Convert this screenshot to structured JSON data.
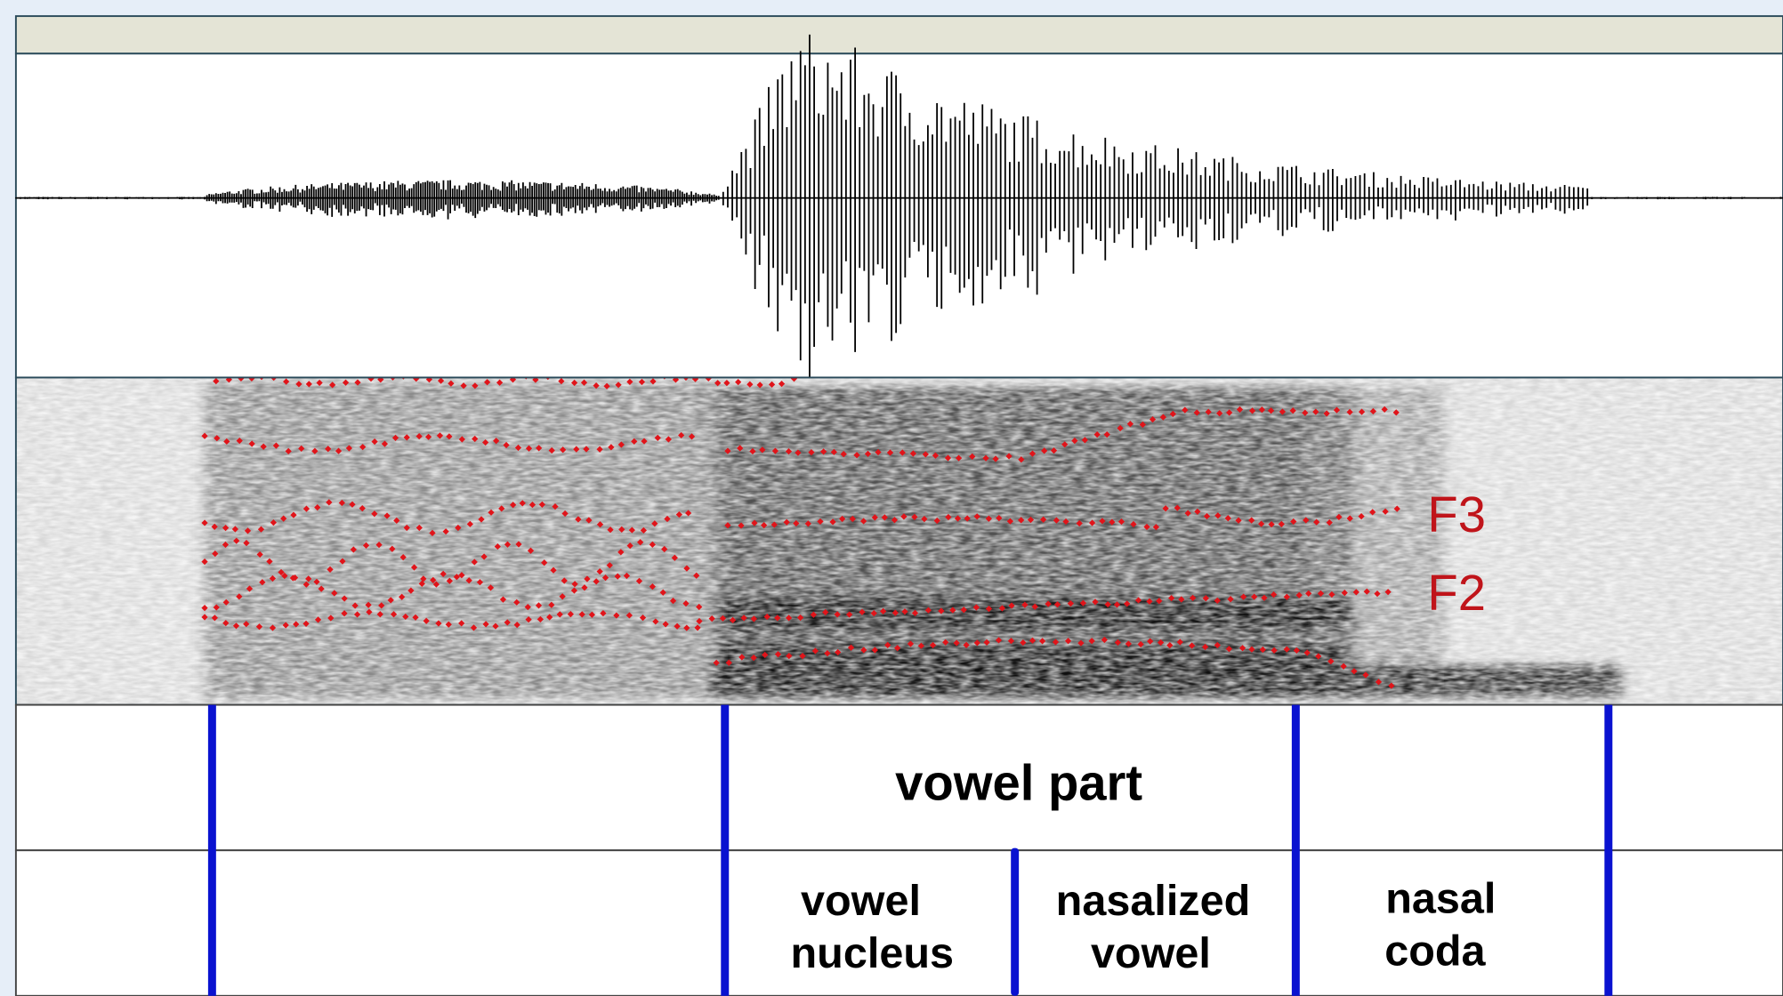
{
  "formant_labels": {
    "f3": "F3",
    "f2": "F2"
  },
  "tier1": {
    "interval": "vowel part"
  },
  "tier2": {
    "intervals": [
      {
        "lines": [
          "vowel",
          "nucleus"
        ]
      },
      {
        "lines": [
          "nasalized",
          "vowel"
        ]
      },
      {
        "lines": [
          "nasal",
          "coda"
        ]
      }
    ]
  }
}
